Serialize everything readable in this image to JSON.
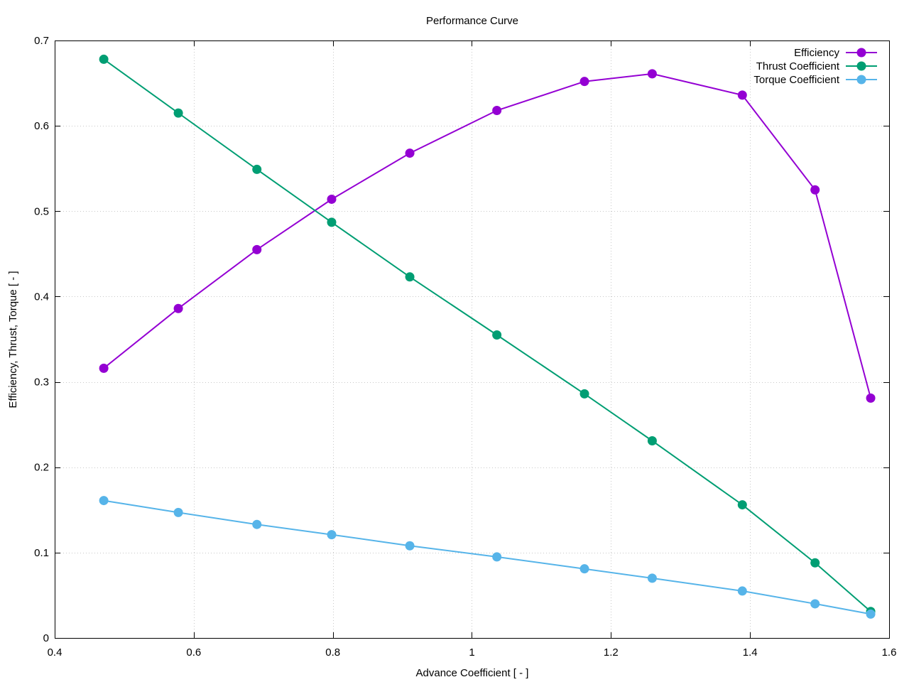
{
  "chart_data": {
    "type": "line",
    "title": "Performance Curve",
    "xlabel": "Advance Coefficient [ - ]",
    "ylabel": "Efficiency, Thrust, Torque [ - ]",
    "xlim": [
      0.4,
      1.6
    ],
    "ylim": [
      0,
      0.7
    ],
    "xticks": [
      0.4,
      0.6,
      0.8,
      1,
      1.2,
      1.4,
      1.6
    ],
    "yticks": [
      0,
      0.1,
      0.2,
      0.3,
      0.4,
      0.5,
      0.6,
      0.7
    ],
    "xtick_labels": [
      "0.4",
      "0.6",
      "0.8",
      "1",
      "1.2",
      "1.4",
      "1.6"
    ],
    "ytick_labels": [
      "0",
      "0.1",
      "0.2",
      "0.3",
      "0.4",
      "0.5",
      "0.6",
      "0.7"
    ],
    "grid": true,
    "legend_position": "top-right",
    "x": [
      0.4706,
      0.5778,
      0.6908,
      0.7983,
      0.9107,
      1.0359,
      1.1619,
      1.2593,
      1.3889,
      1.4935,
      1.5735
    ],
    "series": [
      {
        "name": "Efficiency",
        "color": "#9400d3",
        "values": [
          0.316,
          0.386,
          0.455,
          0.514,
          0.568,
          0.618,
          0.652,
          0.661,
          0.636,
          0.525,
          0.281
        ]
      },
      {
        "name": "Thrust Coefficient",
        "color": "#009e73",
        "values": [
          0.678,
          0.615,
          0.549,
          0.487,
          0.423,
          0.355,
          0.286,
          0.231,
          0.156,
          0.088,
          0.031
        ]
      },
      {
        "name": "Torque Coefficient",
        "color": "#56b4e9",
        "values": [
          0.161,
          0.147,
          0.133,
          0.121,
          0.108,
          0.095,
          0.081,
          0.07,
          0.055,
          0.04,
          0.028
        ]
      }
    ]
  }
}
